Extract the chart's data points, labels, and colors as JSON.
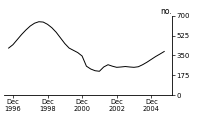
{
  "title": "no.",
  "yticks": [
    0,
    175,
    350,
    525,
    700
  ],
  "ylim": [
    0,
    700
  ],
  "xtick_labels": [
    "Dec\n1996",
    "Dec\n1998",
    "Dec\n2000",
    "Dec\n2002",
    "Dec\n2004"
  ],
  "xtick_positions": [
    1996.0,
    1998.0,
    2000.0,
    2002.0,
    2004.0
  ],
  "xlim": [
    1995.5,
    2005.2
  ],
  "line_color": "#000000",
  "background_color": "#ffffff",
  "x": [
    1995.75,
    1996.0,
    1996.25,
    1996.5,
    1996.75,
    1997.0,
    1997.25,
    1997.5,
    1997.75,
    1998.0,
    1998.25,
    1998.5,
    1998.75,
    1999.0,
    1999.25,
    1999.5,
    1999.75,
    2000.0,
    2000.25,
    2000.5,
    2000.75,
    2001.0,
    2001.25,
    2001.5,
    2001.75,
    2002.0,
    2002.25,
    2002.5,
    2002.75,
    2003.0,
    2003.25,
    2003.5,
    2003.75,
    2004.0,
    2004.25,
    2004.5,
    2004.75
  ],
  "y": [
    415,
    445,
    490,
    535,
    575,
    610,
    635,
    648,
    645,
    625,
    595,
    555,
    505,
    455,
    415,
    395,
    375,
    345,
    255,
    230,
    215,
    210,
    248,
    268,
    255,
    245,
    248,
    252,
    248,
    245,
    250,
    268,
    290,
    315,
    340,
    362,
    385
  ]
}
